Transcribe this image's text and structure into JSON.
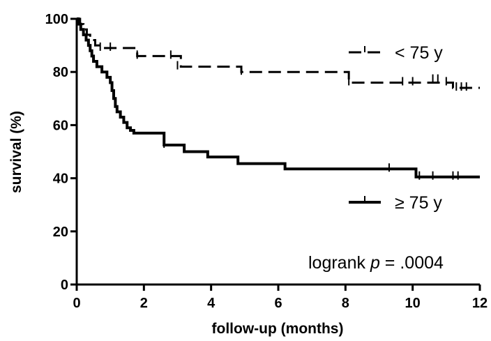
{
  "chart_data": {
    "type": "line",
    "step": true,
    "xlabel": "follow-up (months)",
    "ylabel": "survival (%)",
    "xlim": [
      0,
      12
    ],
    "ylim": [
      0,
      100
    ],
    "xticks": [
      0,
      2,
      4,
      6,
      8,
      10,
      12
    ],
    "yticks": [
      0,
      20,
      40,
      60,
      80,
      100
    ],
    "grid": false,
    "legend_position": "right",
    "annotation": {
      "prefix": "logrank ",
      "italic": "p",
      "suffix": " = .0004"
    },
    "series": [
      {
        "name": "< 75 y",
        "style": "dashed",
        "color": "#000000",
        "x": [
          0,
          0.1,
          0.2,
          0.3,
          0.4,
          0.55,
          0.8,
          1.8,
          3.1,
          4.9,
          8.1,
          11.2,
          12
        ],
        "y": [
          100,
          98,
          96,
          94,
          92,
          90,
          89,
          86,
          82,
          80,
          76,
          74,
          74
        ],
        "censor_x": [
          0.7,
          1.0,
          1.8,
          2.8,
          3.0,
          4.9,
          8.1,
          9.7,
          10.0,
          10.6,
          10.75,
          11.0,
          11.3,
          11.45,
          11.6
        ],
        "censor_y": [
          89,
          89,
          86,
          86,
          82,
          80,
          76,
          76,
          76,
          77,
          77,
          76,
          74,
          74,
          74
        ]
      },
      {
        "name": "≥ 75 y",
        "style": "solid",
        "color": "#000000",
        "x": [
          0,
          0.05,
          0.12,
          0.2,
          0.28,
          0.35,
          0.4,
          0.45,
          0.5,
          0.6,
          0.75,
          0.9,
          1.0,
          1.05,
          1.1,
          1.15,
          1.2,
          1.3,
          1.4,
          1.5,
          1.6,
          1.7,
          2.6,
          3.2,
          3.9,
          4.8,
          6.2,
          10.1,
          12
        ],
        "y": [
          100,
          98,
          96,
          94,
          92,
          90,
          88,
          86,
          84,
          82,
          80,
          78,
          76,
          73,
          70,
          67,
          65,
          63,
          61,
          59,
          58,
          57,
          52.5,
          50,
          48,
          45.5,
          43.5,
          40.5,
          40.5
        ],
        "censor_x": [
          2.6,
          9.3,
          10.2,
          10.6,
          11.2,
          11.35
        ],
        "censor_y": [
          52.5,
          43.5,
          40.5,
          40.5,
          40.5,
          40.5
        ]
      }
    ]
  }
}
